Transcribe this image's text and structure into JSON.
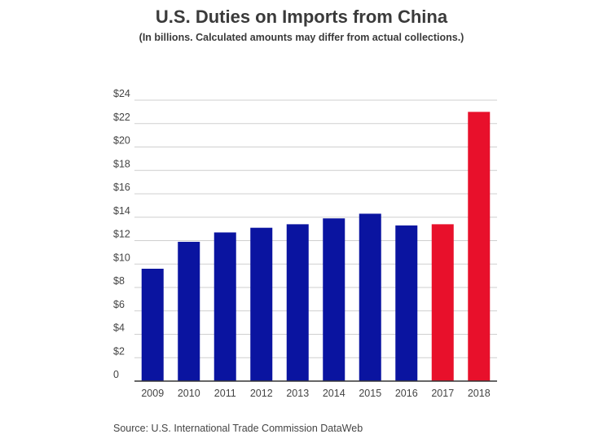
{
  "chart_data": {
    "type": "bar",
    "title": "U.S. Duties on Imports from China",
    "subtitle": "(In billions. Calculated amounts may differ from actual collections.)",
    "categories": [
      "2009",
      "2010",
      "2011",
      "2012",
      "2013",
      "2014",
      "2015",
      "2016",
      "2017",
      "2018"
    ],
    "values": [
      9.6,
      11.9,
      12.7,
      13.1,
      13.4,
      13.9,
      14.3,
      13.3,
      13.4,
      23.0
    ],
    "bar_colors": [
      "#0a14a0",
      "#0a14a0",
      "#0a14a0",
      "#0a14a0",
      "#0a14a0",
      "#0a14a0",
      "#0a14a0",
      "#0a14a0",
      "#e8102b",
      "#e8102b"
    ],
    "ylim": [
      0,
      24
    ],
    "yticks": [
      0,
      2,
      4,
      6,
      8,
      10,
      12,
      14,
      16,
      18,
      20,
      22,
      24
    ],
    "ytick_labels": [
      "0",
      "$2",
      "$4",
      "$6",
      "$8",
      "$10",
      "$12",
      "$14",
      "$16",
      "$18",
      "$20",
      "$22",
      "$24"
    ],
    "xlabel": "",
    "ylabel": "",
    "grid": true,
    "source": "Source: U.S. International Trade Commission DataWeb"
  }
}
